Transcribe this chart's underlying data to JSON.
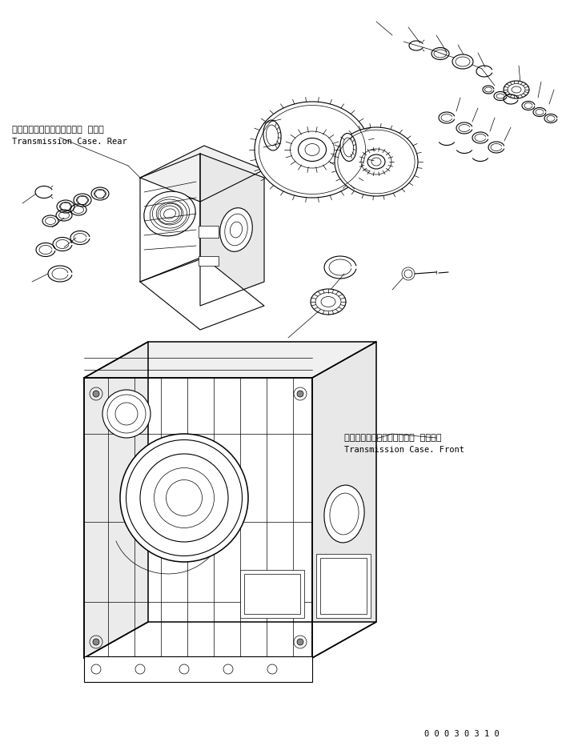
{
  "background_color": "#ffffff",
  "line_color": "#000000",
  "figure_width": 7.02,
  "figure_height": 9.32,
  "dpi": 100,
  "label_rear_jp": "トランスミッションケース． リヤー",
  "label_rear_en": "Transmission Case. Rear",
  "label_front_jp": "トランスミッションケース． フロント",
  "label_front_en": "Transmission Case. Front",
  "part_number": "0 0 0 3 0 3 1 0",
  "text_color": "#000000",
  "label_fontsize": 8.0,
  "part_number_fontsize": 7.5
}
